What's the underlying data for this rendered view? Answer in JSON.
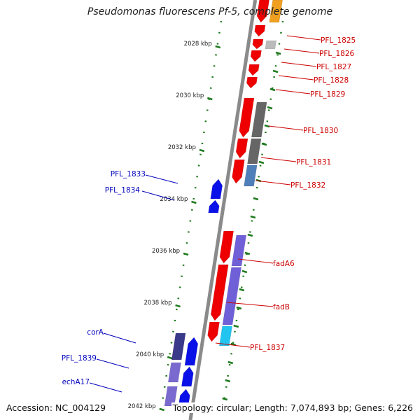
{
  "title": "Pseudomonas fluorescens Pf-5, complete genome",
  "footer": {
    "accession": "Accession: NC_004129",
    "topology": "Topology: circular; Length: 7,074,893 bp; Genes: 6,226"
  },
  "colors": {
    "reverse_strand": "#ee0000",
    "forward_strand": "#0a10e8",
    "reverse_label": "#cc0000",
    "forward_label": "#0000bb",
    "ruler_ticks": "#1e7a1e",
    "backbone": "#8a8a8a"
  },
  "ruler_ticks_kbp": [
    {
      "label": "2028 kbp",
      "kbp": 2028
    },
    {
      "label": "2030 kbp",
      "kbp": 2030
    },
    {
      "label": "2032 kbp",
      "kbp": 2032
    },
    {
      "label": "2034 kbp",
      "kbp": 2034
    },
    {
      "label": "2036 kbp",
      "kbp": 2036
    },
    {
      "label": "2038 kbp",
      "kbp": 2038
    },
    {
      "label": "2040 kbp",
      "kbp": 2040
    },
    {
      "label": "2042 kbp",
      "kbp": 2042
    }
  ],
  "gene_labels": {
    "reverse": [
      "PFL_1825",
      "PFL_1826",
      "PFL_1827",
      "PFL_1828",
      "PFL_1829",
      "PFL_1830",
      "PFL_1831",
      "PFL_1832",
      "fadA6",
      "fadB",
      "PFL_1837"
    ],
    "forward": [
      "PFL_1833",
      "PFL_1834",
      "corA",
      "PFL_1839",
      "echA17"
    ]
  },
  "cog_colors": {
    "gray_dark": "#666666",
    "gray_light": "#bbbbbb",
    "steel_blue": "#4f7fb8",
    "violet": "#7060d8",
    "indigo": "#3a3a8a",
    "lavender": "#7a6ad0",
    "cyan": "#22c4f0",
    "orange": "#f0a020"
  }
}
